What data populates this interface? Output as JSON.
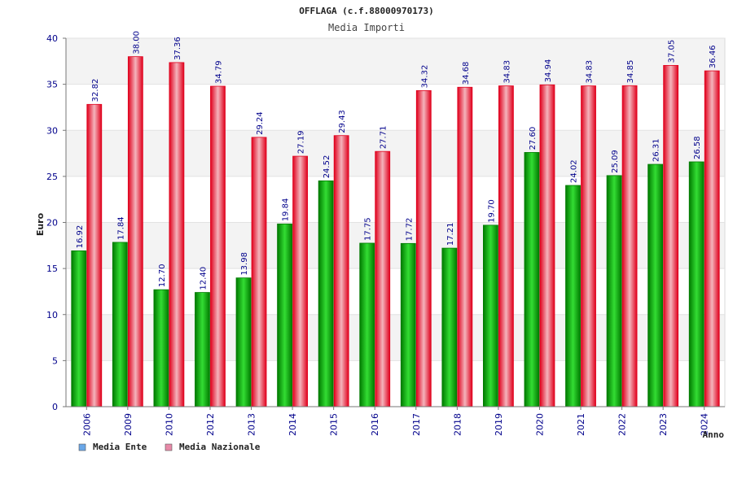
{
  "colors": {
    "band": "#f3f3f3",
    "axis_text": "#00008b",
    "title_text": "#222222",
    "ente_dark": "#007a00",
    "ente_light": "#33dd33",
    "naz_dark": "#e0001c",
    "naz_light": "#f4b4bc",
    "legend_ente": "#6aa7e8",
    "legend_naz": "#e88aa8"
  },
  "chart_data": {
    "type": "bar",
    "title": "OFFLAGA (c.f.88000970173)",
    "subtitle": "Media Importi",
    "xlabel": "Anno",
    "ylabel": "Euro",
    "ylim": [
      0,
      40
    ],
    "yticks": [
      "0",
      "5",
      "10",
      "15",
      "20",
      "25",
      "30",
      "35",
      "40"
    ],
    "categories": [
      "2006",
      "2009",
      "2010",
      "2012",
      "2013",
      "2014",
      "2015",
      "2016",
      "2017",
      "2018",
      "2019",
      "2020",
      "2021",
      "2022",
      "2023",
      "2024"
    ],
    "series": [
      {
        "name": "Media Ente",
        "values": [
          16.92,
          17.84,
          12.7,
          12.4,
          13.98,
          19.84,
          24.52,
          17.75,
          17.72,
          17.21,
          19.7,
          27.6,
          24.02,
          25.09,
          26.31,
          26.58
        ],
        "labels": [
          "16.92",
          "17.84",
          "12.70",
          "12.40",
          "13.98",
          "19.84",
          "24.52",
          "17.75",
          "17.72",
          "17.21",
          "19.70",
          "27.60",
          "24.02",
          "25.09",
          "26.31",
          "26.58"
        ]
      },
      {
        "name": "Media Nazionale",
        "values": [
          32.82,
          38.0,
          37.36,
          34.79,
          29.24,
          27.19,
          29.43,
          27.71,
          34.32,
          34.68,
          34.83,
          34.94,
          34.83,
          34.85,
          37.05,
          36.46
        ],
        "labels": [
          "32.82",
          "38.00",
          "37.36",
          "34.79",
          "29.24",
          "27.19",
          "29.43",
          "27.71",
          "34.32",
          "34.68",
          "34.83",
          "34.94",
          "34.83",
          "34.85",
          "37.05",
          "36.46"
        ]
      }
    ],
    "grid": true,
    "legend_position": "bottom-left"
  }
}
